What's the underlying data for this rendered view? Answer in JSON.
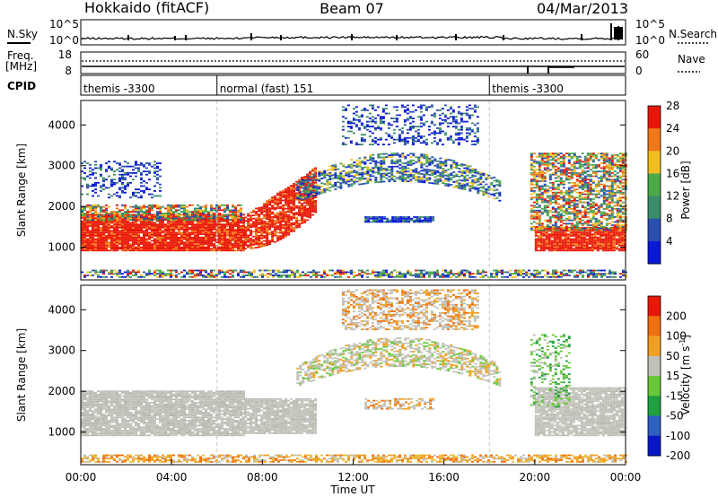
{
  "header": {
    "radar_title": "Hokkaido (fitACF)",
    "beam": "Beam 07",
    "date": "04/Mar/2013"
  },
  "noise_panel": {
    "left_label": "N.Sky",
    "right_label": "N.Search",
    "left_ticks": [
      "10^5",
      "10^0"
    ],
    "right_ticks": [
      "10^5",
      "10^0"
    ]
  },
  "freq_panel": {
    "left_label_line1": "Freq.",
    "left_label_line2": "[MHz]",
    "left_ticks": [
      "18",
      "8"
    ],
    "right_label": "Nave",
    "right_ticks": [
      "60",
      "0"
    ]
  },
  "cpid_panel": {
    "label": "CPID",
    "segments": [
      {
        "start_hour": 0,
        "end_hour": 6,
        "text": "themis -3300"
      },
      {
        "start_hour": 6,
        "end_hour": 18,
        "text": "normal (fast) 151"
      },
      {
        "start_hour": 18,
        "end_hour": 24,
        "text": "themis -3300"
      }
    ]
  },
  "chart_data": [
    {
      "type": "heatmap",
      "title": "Power",
      "ylabel": "Slant Range [km]",
      "ylim": [
        200,
        4600
      ],
      "y_ticks": [
        "1000",
        "2000",
        "3000",
        "4000"
      ],
      "y_tick_values": [
        1000,
        2000,
        3000,
        4000
      ],
      "colorbar": {
        "label": "Power [dB]",
        "levels": [
          "4",
          "8",
          "12",
          "16",
          "20",
          "24",
          "28"
        ],
        "colors": [
          "#0a18d8",
          "#2a4fb0",
          "#3c8c6c",
          "#4caa48",
          "#f0c020",
          "#f07818",
          "#e81808"
        ]
      },
      "regions": [
        {
          "t0": 0.0,
          "t1": 7.2,
          "r0": 900,
          "r1": 1800,
          "c": "red"
        },
        {
          "t0": 0.0,
          "t1": 7.0,
          "r0": 1650,
          "r1": 2050,
          "c": "green_mix"
        },
        {
          "t0": 7.2,
          "t1": 10.3,
          "r0": 950,
          "r1": 1750,
          "c": "red_rising"
        },
        {
          "t0": 0.0,
          "t1": 3.5,
          "r0": 2200,
          "r1": 3100,
          "c": "blue_sparse"
        },
        {
          "t0": 9.5,
          "t1": 18.5,
          "r0": 2100,
          "r1": 3300,
          "c": "arch"
        },
        {
          "t0": 12.5,
          "t1": 15.5,
          "r0": 1600,
          "r1": 1750,
          "c": "blue_band"
        },
        {
          "t0": 11.5,
          "t1": 17.5,
          "r0": 3500,
          "r1": 4500,
          "c": "blue_sparse"
        },
        {
          "t0": 20.0,
          "t1": 24.0,
          "r0": 900,
          "r1": 1500,
          "c": "red"
        },
        {
          "t0": 19.8,
          "t1": 24.0,
          "r0": 1400,
          "r1": 3300,
          "c": "green_mix"
        },
        {
          "t0": 0.0,
          "t1": 24.0,
          "r0": 250,
          "r1": 450,
          "c": "ground_mix"
        }
      ]
    },
    {
      "type": "heatmap",
      "title": "Velocity",
      "ylabel": "Slant Range [km]",
      "xlabel": "Time UT",
      "ylim": [
        200,
        4600
      ],
      "y_ticks": [
        "1000",
        "2000",
        "3000",
        "4000"
      ],
      "y_tick_values": [
        1000,
        2000,
        3000,
        4000
      ],
      "x_ticks": [
        "00:00",
        "04:00",
        "08:00",
        "12:00",
        "16:00",
        "20:00",
        "00:00"
      ],
      "xlim_hours": [
        0,
        24
      ],
      "colorbar": {
        "label": "Velocity [m s-1]",
        "label_text": "Velocity [m s",
        "label_sup": "-1",
        "label_end": "]",
        "levels": [
          "200",
          "100",
          "50",
          "15",
          "-15",
          "-50",
          "-100",
          "-200"
        ],
        "colors": [
          "#0818c8",
          "#3060c0",
          "#20a040",
          "#68c838",
          "#c0c0b8",
          "#f0a020",
          "#f07010",
          "#e81808"
        ]
      },
      "regions": [
        {
          "t0": 0.0,
          "t1": 7.2,
          "r0": 900,
          "r1": 2000,
          "c": "gray"
        },
        {
          "t0": 7.2,
          "t1": 10.3,
          "r0": 950,
          "r1": 1800,
          "c": "gray"
        },
        {
          "t0": 9.5,
          "t1": 18.5,
          "r0": 2100,
          "r1": 3300,
          "c": "gray_mix"
        },
        {
          "t0": 12.5,
          "t1": 15.5,
          "r0": 1550,
          "r1": 1800,
          "c": "gray_orange"
        },
        {
          "t0": 11.5,
          "t1": 17.5,
          "r0": 3500,
          "r1": 4500,
          "c": "gray_orange"
        },
        {
          "t0": 20.0,
          "t1": 24.0,
          "r0": 900,
          "r1": 2100,
          "c": "gray"
        },
        {
          "t0": 19.8,
          "t1": 21.5,
          "r0": 1600,
          "r1": 3400,
          "c": "green_sparse"
        },
        {
          "t0": 0.0,
          "t1": 24.0,
          "r0": 250,
          "r1": 450,
          "c": "orange_ground"
        }
      ]
    }
  ]
}
